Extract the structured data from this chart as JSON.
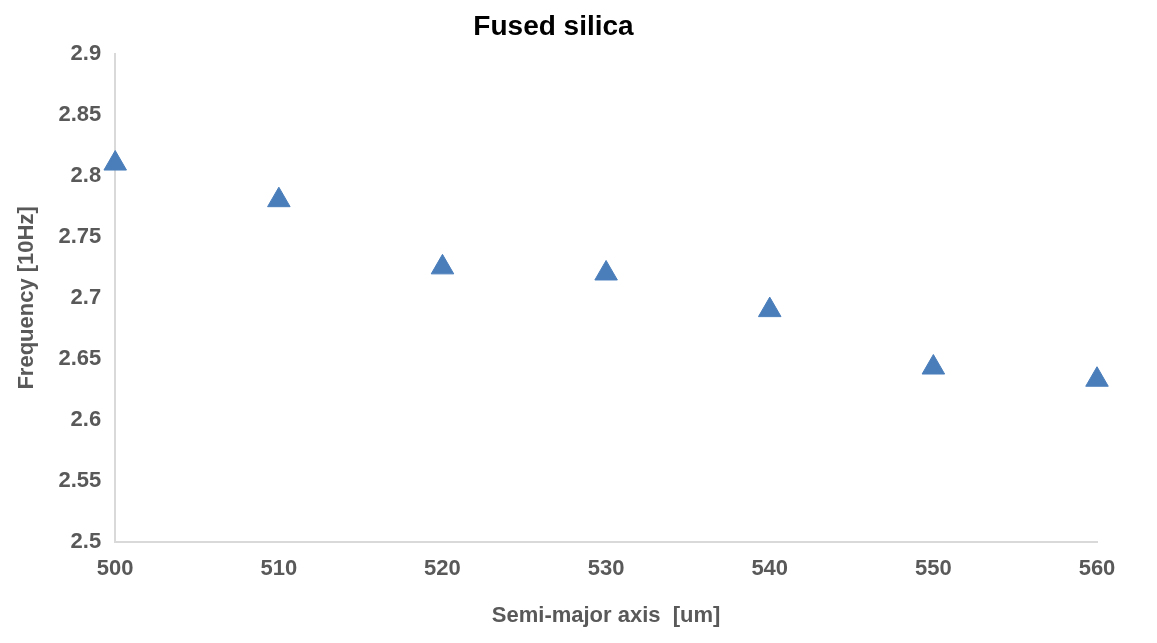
{
  "chart_data": {
    "type": "scatter",
    "title": "Fused silica",
    "xlabel": "Semi-major axis  [um]",
    "ylabel": "Frequency [10Hz]",
    "x": [
      500,
      510,
      520,
      530,
      540,
      550,
      560
    ],
    "series": [
      {
        "color": "#4a7ebb",
        "values": [
          2.81,
          2.78,
          2.725,
          2.72,
          2.69,
          2.643,
          2.633
        ]
      }
    ],
    "xlim": [
      500,
      560
    ],
    "xticks": [
      500,
      510,
      520,
      530,
      540,
      550,
      560
    ],
    "ylim": [
      2.5,
      2.9
    ],
    "yticks": [
      2.5,
      2.55,
      2.6,
      2.65,
      2.7,
      2.75,
      2.8,
      2.85,
      2.9
    ],
    "grid": false,
    "legend": false,
    "marker": "triangle"
  }
}
